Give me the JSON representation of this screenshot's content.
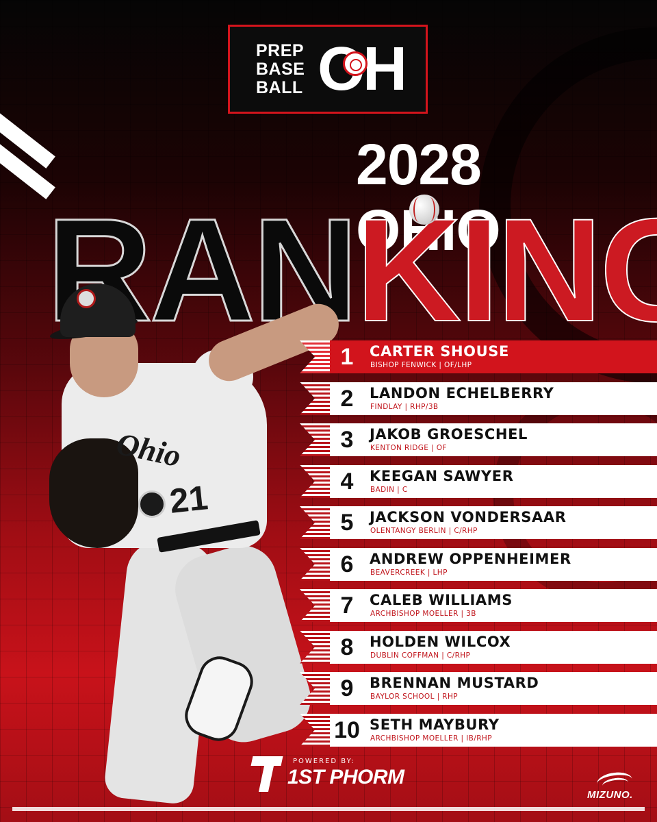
{
  "logo": {
    "line1": "PREP",
    "line2": "BASE",
    "line3": "BALL",
    "mark": "OH"
  },
  "headline": {
    "title": "2028 OHIO",
    "big_dark": "RAN",
    "big_red": "KINGS"
  },
  "rankings": [
    {
      "rank": "1",
      "name": "CARTER SHOUSE",
      "detail": "BISHOP FENWICK | OF/LHP"
    },
    {
      "rank": "2",
      "name": "LANDON ECHELBERRY",
      "detail": "FINDLAY | RHP/3B"
    },
    {
      "rank": "3",
      "name": "JAKOB GROESCHEL",
      "detail": "KENTON RIDGE | OF"
    },
    {
      "rank": "4",
      "name": "KEEGAN SAWYER",
      "detail": "BADIN | C"
    },
    {
      "rank": "5",
      "name": "JACKSON VONDERSAAR",
      "detail": "OLENTANGY BERLIN | C/RHP"
    },
    {
      "rank": "6",
      "name": "ANDREW OPPENHEIMER",
      "detail": "BEAVERCREEK | LHP"
    },
    {
      "rank": "7",
      "name": "CALEB WILLIAMS",
      "detail": "ARCHBISHOP MOELLER | 3B"
    },
    {
      "rank": "8",
      "name": "HOLDEN WILCOX",
      "detail": "DUBLIN COFFMAN | C/RHP"
    },
    {
      "rank": "9",
      "name": "BRENNAN MUSTARD",
      "detail": "BAYLOR SCHOOL | RHP"
    },
    {
      "rank": "10",
      "name": "SETH MAYBURY",
      "detail": "ARCHBISHOP MOELLER | IB/RHP"
    }
  ],
  "jersey": {
    "script": "Ohio",
    "number": "21"
  },
  "sponsor": {
    "label": "POWERED BY:",
    "brand": "1ST PHORM"
  },
  "footer_brand": "MIZUNO.",
  "colors": {
    "accent_red": "#d2141c",
    "dark": "#0a0a0a",
    "white": "#ffffff"
  },
  "icons": {
    "logo_ball": "baseball-icon",
    "sponsor_mark": "phorm-logo-icon",
    "brand_mark": "mizuno-runbird-icon"
  }
}
